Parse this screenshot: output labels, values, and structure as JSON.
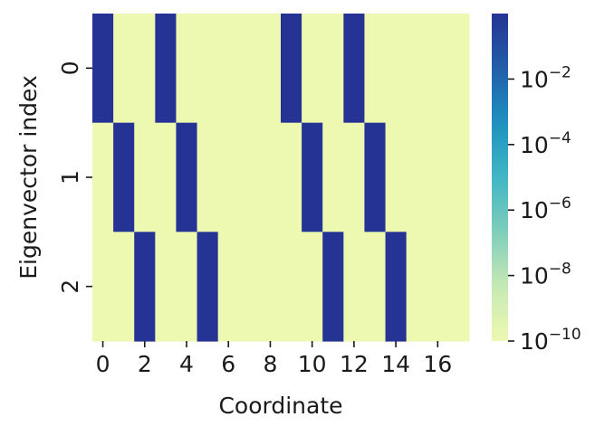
{
  "chart_data": {
    "type": "heatmap",
    "title": "",
    "xlabel": "Coordinate",
    "ylabel": "Eigenvector index",
    "x": [
      0,
      1,
      2,
      3,
      4,
      5,
      6,
      7,
      8,
      9,
      10,
      11,
      12,
      13,
      14,
      15,
      16,
      17
    ],
    "y": [
      0,
      1,
      2
    ],
    "x_tick_labels": [
      "0",
      "2",
      "4",
      "6",
      "8",
      "10",
      "12",
      "14",
      "16"
    ],
    "x_tick_values": [
      0,
      2,
      4,
      6,
      8,
      10,
      12,
      14,
      16
    ],
    "y_tick_labels": [
      "0",
      "1",
      "2"
    ],
    "y_tick_values": [
      0,
      1,
      2
    ],
    "values": [
      [
        1,
        1e-10,
        1e-10,
        1,
        1e-10,
        1e-10,
        1e-10,
        1e-10,
        1e-10,
        1,
        1e-10,
        1e-10,
        1,
        1e-10,
        1e-10,
        1e-10,
        1e-10,
        1e-10
      ],
      [
        1e-10,
        1,
        1e-10,
        1e-10,
        1,
        1e-10,
        1e-10,
        1e-10,
        1e-10,
        1e-10,
        1,
        1e-10,
        1e-10,
        1,
        1e-10,
        1e-10,
        1e-10,
        1e-10
      ],
      [
        1e-10,
        1e-10,
        1,
        1e-10,
        1e-10,
        1,
        1e-10,
        1e-10,
        1e-10,
        1e-10,
        1e-10,
        1,
        1e-10,
        1e-10,
        1,
        1e-10,
        1e-10,
        1e-10
      ]
    ],
    "colorbar": {
      "scale": "log",
      "colormap": "YlGnBu",
      "range": [
        1e-10,
        1
      ],
      "ticks": [
        1e-10,
        1e-08,
        1e-06,
        0.0001,
        0.01
      ],
      "tick_labels": [
        {
          "base": "10",
          "exp": "−10"
        },
        {
          "base": "10",
          "exp": "−8"
        },
        {
          "base": "10",
          "exp": "−6"
        },
        {
          "base": "10",
          "exp": "−4"
        },
        {
          "base": "10",
          "exp": "−2"
        }
      ]
    },
    "colors": [
      "#edf8b1",
      "#c7e9b4",
      "#7fcdbb",
      "#41b6c4",
      "#1d91c0",
      "#225ea8",
      "#253494"
    ],
    "grid": false
  }
}
